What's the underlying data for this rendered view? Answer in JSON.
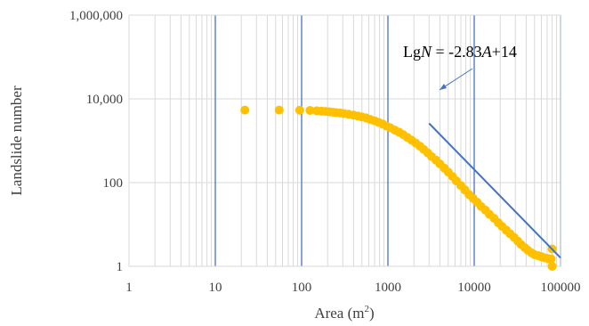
{
  "chart_data": {
    "type": "scatter",
    "xlabel": "Area (m",
    "xlabel_sup": "2",
    "xlabel_end": ")",
    "ylabel": "Landslide number",
    "x_scale": "log",
    "y_scale": "log",
    "xlim": [
      1,
      100000
    ],
    "ylim": [
      1,
      1000000
    ],
    "x_ticks": [
      {
        "value": 1,
        "label": "1"
      },
      {
        "value": 10,
        "label": "10"
      },
      {
        "value": 100,
        "label": "100"
      },
      {
        "value": 1000,
        "label": "1000"
      },
      {
        "value": 10000,
        "label": "10000"
      },
      {
        "value": 100000,
        "label": "100000"
      }
    ],
    "y_ticks": [
      {
        "value": 1,
        "label": "1"
      },
      {
        "value": 100,
        "label": "100"
      },
      {
        "value": 10000,
        "label": "10,000"
      },
      {
        "value": 1000000,
        "label": "1,000,000"
      }
    ],
    "grid": true,
    "colors": {
      "points": "#FFC000",
      "fit_line": "#4472C4",
      "major_grid": "#4472C4",
      "minor_grid": "#D9D9D9"
    },
    "series": [
      {
        "kind": "points",
        "x": [
          22,
          55,
          95,
          125,
          150,
          170,
          190,
          210,
          230,
          250,
          280,
          310,
          350,
          400,
          450,
          500,
          560,
          620,
          700,
          780,
          870,
          960,
          1060,
          1200,
          1350,
          1500,
          1680,
          1880,
          2100,
          2350,
          2600,
          2900,
          3200,
          3600,
          4000,
          4500,
          5000,
          5600,
          6200,
          7000,
          7800,
          8700,
          9700,
          10800,
          12000,
          13500,
          15000,
          17000,
          19000,
          21000,
          23500,
          26000,
          29000,
          32000,
          35000,
          38500,
          42000,
          46000,
          50000,
          55000,
          60000,
          65000,
          70000,
          74000,
          78000,
          80000,
          80000
        ],
        "y": [
          5400,
          5400,
          5350,
          5300,
          5200,
          5100,
          5000,
          4900,
          4800,
          4700,
          4600,
          4450,
          4300,
          4100,
          3900,
          3700,
          3500,
          3250,
          3000,
          2750,
          2500,
          2250,
          2050,
          1800,
          1600,
          1400,
          1200,
          1030,
          880,
          740,
          620,
          510,
          420,
          345,
          280,
          222,
          178,
          140,
          110,
          85,
          67,
          52,
          42,
          34,
          27,
          22,
          17.5,
          14,
          11,
          9,
          7.3,
          6,
          4.9,
          4,
          3.3,
          2.8,
          2.4,
          2.1,
          1.9,
          1.8,
          1.7,
          1.6,
          1.55,
          1.5,
          1.5,
          2.6,
          1
        ]
      },
      {
        "kind": "fit_line",
        "x": [
          3000,
          100000
        ],
        "y": [
          2600,
          1.6
        ]
      }
    ],
    "annotation": {
      "part1": "Lg",
      "part2": "N",
      "part3": " = -2.83",
      "part4": "A",
      "part5": "+14"
    }
  }
}
